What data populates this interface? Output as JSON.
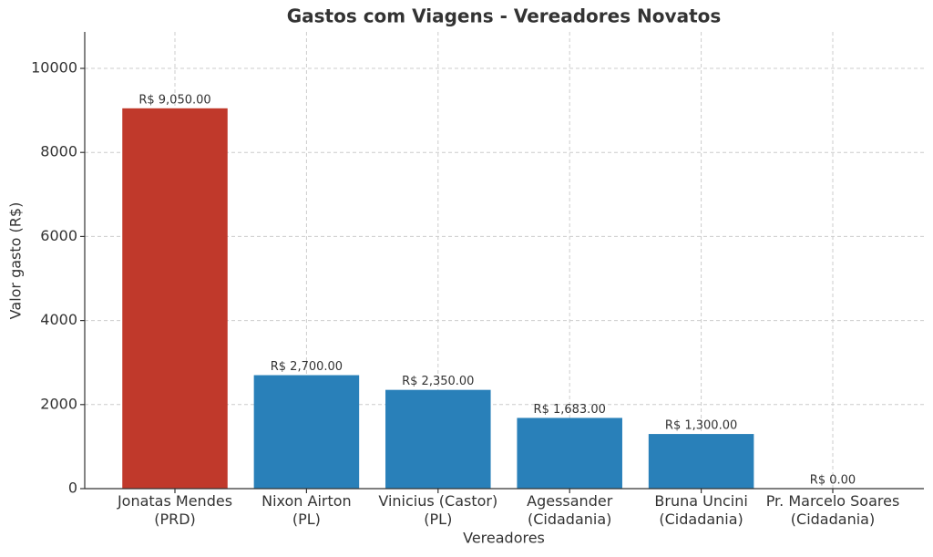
{
  "chart_data": {
    "type": "bar",
    "title": "Gastos com Viagens - Vereadores Novatos",
    "x_label": "Vereadores",
    "y_label": "Valor gasto (R$)",
    "categories": [
      "Jonatas Mendes\n(PRD)",
      "Nixon Airton\n(PL)",
      "Vinicius (Castor)\n(PL)",
      "Agessander\n(Cidadania)",
      "Bruna Uncini\n(Cidadania)",
      "Pr. Marcelo Soares\n(Cidadania)"
    ],
    "values": [
      9050,
      2700,
      2350,
      1683,
      1300,
      0
    ],
    "value_labels": [
      "R$ 9,050.00",
      "R$ 2,700.00",
      "R$ 2,350.00",
      "R$ 1,683.00",
      "R$ 1,300.00",
      "R$ 0.00"
    ],
    "colors": [
      "#c0392b",
      "#2980b9",
      "#2980b9",
      "#2980b9",
      "#2980b9",
      "#2980b9"
    ],
    "ylim": [
      0,
      10868
    ],
    "yticks": [
      0,
      2000,
      4000,
      6000,
      8000,
      10000
    ],
    "grid": true
  }
}
